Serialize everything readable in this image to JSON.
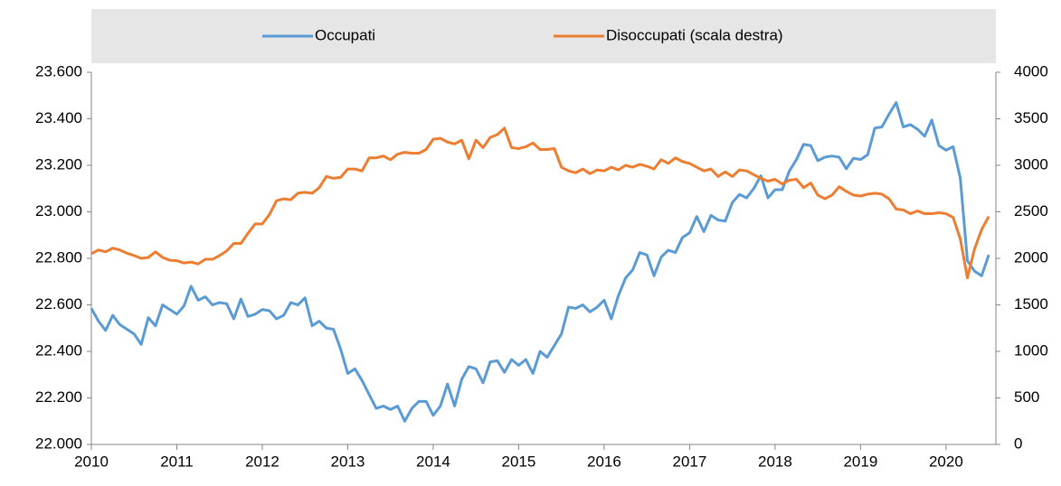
{
  "chart_data": {
    "type": "line",
    "x": [
      2010,
      2010.0833,
      2010.1667,
      2010.25,
      2010.3333,
      2010.4167,
      2010.5,
      2010.5833,
      2010.6667,
      2010.75,
      2010.8333,
      2010.9167,
      2011,
      2011.0833,
      2011.1667,
      2011.25,
      2011.3333,
      2011.4167,
      2011.5,
      2011.5833,
      2011.6667,
      2011.75,
      2011.8333,
      2011.9167,
      2012,
      2012.0833,
      2012.1667,
      2012.25,
      2012.3333,
      2012.4167,
      2012.5,
      2012.5833,
      2012.6667,
      2012.75,
      2012.8333,
      2012.9167,
      2013,
      2013.0833,
      2013.1667,
      2013.25,
      2013.3333,
      2013.4167,
      2013.5,
      2013.5833,
      2013.6667,
      2013.75,
      2013.8333,
      2013.9167,
      2014,
      2014.0833,
      2014.1667,
      2014.25,
      2014.3333,
      2014.4167,
      2014.5,
      2014.5833,
      2014.6667,
      2014.75,
      2014.8333,
      2014.9167,
      2015,
      2015.0833,
      2015.1667,
      2015.25,
      2015.3333,
      2015.4167,
      2015.5,
      2015.5833,
      2015.6667,
      2015.75,
      2015.8333,
      2015.9167,
      2016,
      2016.0833,
      2016.1667,
      2016.25,
      2016.3333,
      2016.4167,
      2016.5,
      2016.5833,
      2016.6667,
      2016.75,
      2016.8333,
      2016.9167,
      2017,
      2017.0833,
      2017.1667,
      2017.25,
      2017.3333,
      2017.4167,
      2017.5,
      2017.5833,
      2017.6667,
      2017.75,
      2017.8333,
      2017.9167,
      2018,
      2018.0833,
      2018.1667,
      2018.25,
      2018.3333,
      2018.4167,
      2018.5,
      2018.5833,
      2018.6667,
      2018.75,
      2018.8333,
      2018.9167,
      2019,
      2019.0833,
      2019.1667,
      2019.25,
      2019.3333,
      2019.4167,
      2019.5,
      2019.5833,
      2019.6667,
      2019.75,
      2019.8333,
      2019.9167,
      2020,
      2020.0833,
      2020.1667,
      2020.25,
      2020.3333,
      2020.4167,
      2020.5
    ],
    "series": [
      {
        "name": "Occupati",
        "color": "#5b9bd5",
        "values": [
          22585,
          22530,
          22490,
          22555,
          22515,
          22495,
          22475,
          22430,
          22545,
          22510,
          22600,
          22580,
          22560,
          22595,
          22680,
          22620,
          22635,
          22600,
          22610,
          22605,
          22540,
          22625,
          22550,
          22560,
          22580,
          22575,
          22540,
          22555,
          22610,
          22600,
          22630,
          22510,
          22530,
          22500,
          22495,
          22410,
          22305,
          22325,
          22275,
          22215,
          22155,
          22165,
          22150,
          22165,
          22100,
          22155,
          22185,
          22185,
          22125,
          22165,
          22260,
          22165,
          22280,
          22335,
          22325,
          22265,
          22355,
          22360,
          22310,
          22365,
          22340,
          22365,
          22305,
          22400,
          22375,
          22425,
          22475,
          22590,
          22585,
          22600,
          22570,
          22590,
          22620,
          22540,
          22640,
          22715,
          22750,
          22825,
          22815,
          22725,
          22805,
          22835,
          22825,
          22890,
          22910,
          22980,
          22915,
          22985,
          22965,
          22960,
          23040,
          23075,
          23060,
          23100,
          23155,
          23060,
          23095,
          23095,
          23175,
          23225,
          23290,
          23285,
          23220,
          23235,
          23240,
          23235,
          23185,
          23230,
          23225,
          23245,
          23360,
          23365,
          23420,
          23470,
          23365,
          23375,
          23355,
          23325,
          23395,
          23285,
          23265,
          23280,
          23145,
          22790,
          22745,
          22725,
          22815
        ]
      },
      {
        "name": "Disoccupati (scala destra)",
        "color": "#ed7d31",
        "axis": "y2",
        "values": [
          2050,
          2090,
          2070,
          2110,
          2090,
          2055,
          2030,
          2000,
          2010,
          2070,
          2010,
          1980,
          1975,
          1950,
          1960,
          1940,
          1990,
          1990,
          2030,
          2080,
          2160,
          2160,
          2270,
          2370,
          2370,
          2470,
          2620,
          2640,
          2630,
          2700,
          2710,
          2700,
          2760,
          2880,
          2860,
          2870,
          2960,
          2960,
          2940,
          3080,
          3080,
          3100,
          3060,
          3120,
          3140,
          3130,
          3130,
          3170,
          3280,
          3290,
          3250,
          3230,
          3270,
          3070,
          3270,
          3190,
          3300,
          3330,
          3400,
          3190,
          3180,
          3200,
          3240,
          3170,
          3170,
          3180,
          2980,
          2940,
          2920,
          2960,
          2910,
          2950,
          2940,
          2980,
          2950,
          3000,
          2980,
          3010,
          2990,
          2960,
          3060,
          3020,
          3080,
          3040,
          3020,
          2980,
          2940,
          2960,
          2880,
          2930,
          2880,
          2950,
          2940,
          2900,
          2860,
          2830,
          2850,
          2800,
          2840,
          2850,
          2760,
          2810,
          2680,
          2640,
          2680,
          2770,
          2720,
          2680,
          2670,
          2690,
          2700,
          2690,
          2640,
          2530,
          2520,
          2480,
          2510,
          2480,
          2480,
          2490,
          2480,
          2440,
          2210,
          1790,
          2100,
          2310,
          2450
        ]
      }
    ],
    "xlim": [
      2010,
      2020.5833
    ],
    "xticks": [
      2010,
      2011,
      2012,
      2013,
      2014,
      2015,
      2016,
      2017,
      2018,
      2019,
      2020
    ],
    "ylim": [
      22000,
      23600
    ],
    "yticks": [
      {
        "value": 22000,
        "label": "22.000"
      },
      {
        "value": 22200,
        "label": "22.200"
      },
      {
        "value": 22400,
        "label": "22.400"
      },
      {
        "value": 22600,
        "label": "22.600"
      },
      {
        "value": 22800,
        "label": "22.800"
      },
      {
        "value": 23000,
        "label": "23.000"
      },
      {
        "value": 23200,
        "label": "23.200"
      },
      {
        "value": 23400,
        "label": "23.400"
      },
      {
        "value": 23600,
        "label": "23.600"
      }
    ],
    "y2lim": [
      0,
      4000
    ],
    "y2ticks": [
      0,
      500,
      1000,
      1500,
      2000,
      2500,
      3000,
      3500,
      4000
    ],
    "legend": "top"
  }
}
